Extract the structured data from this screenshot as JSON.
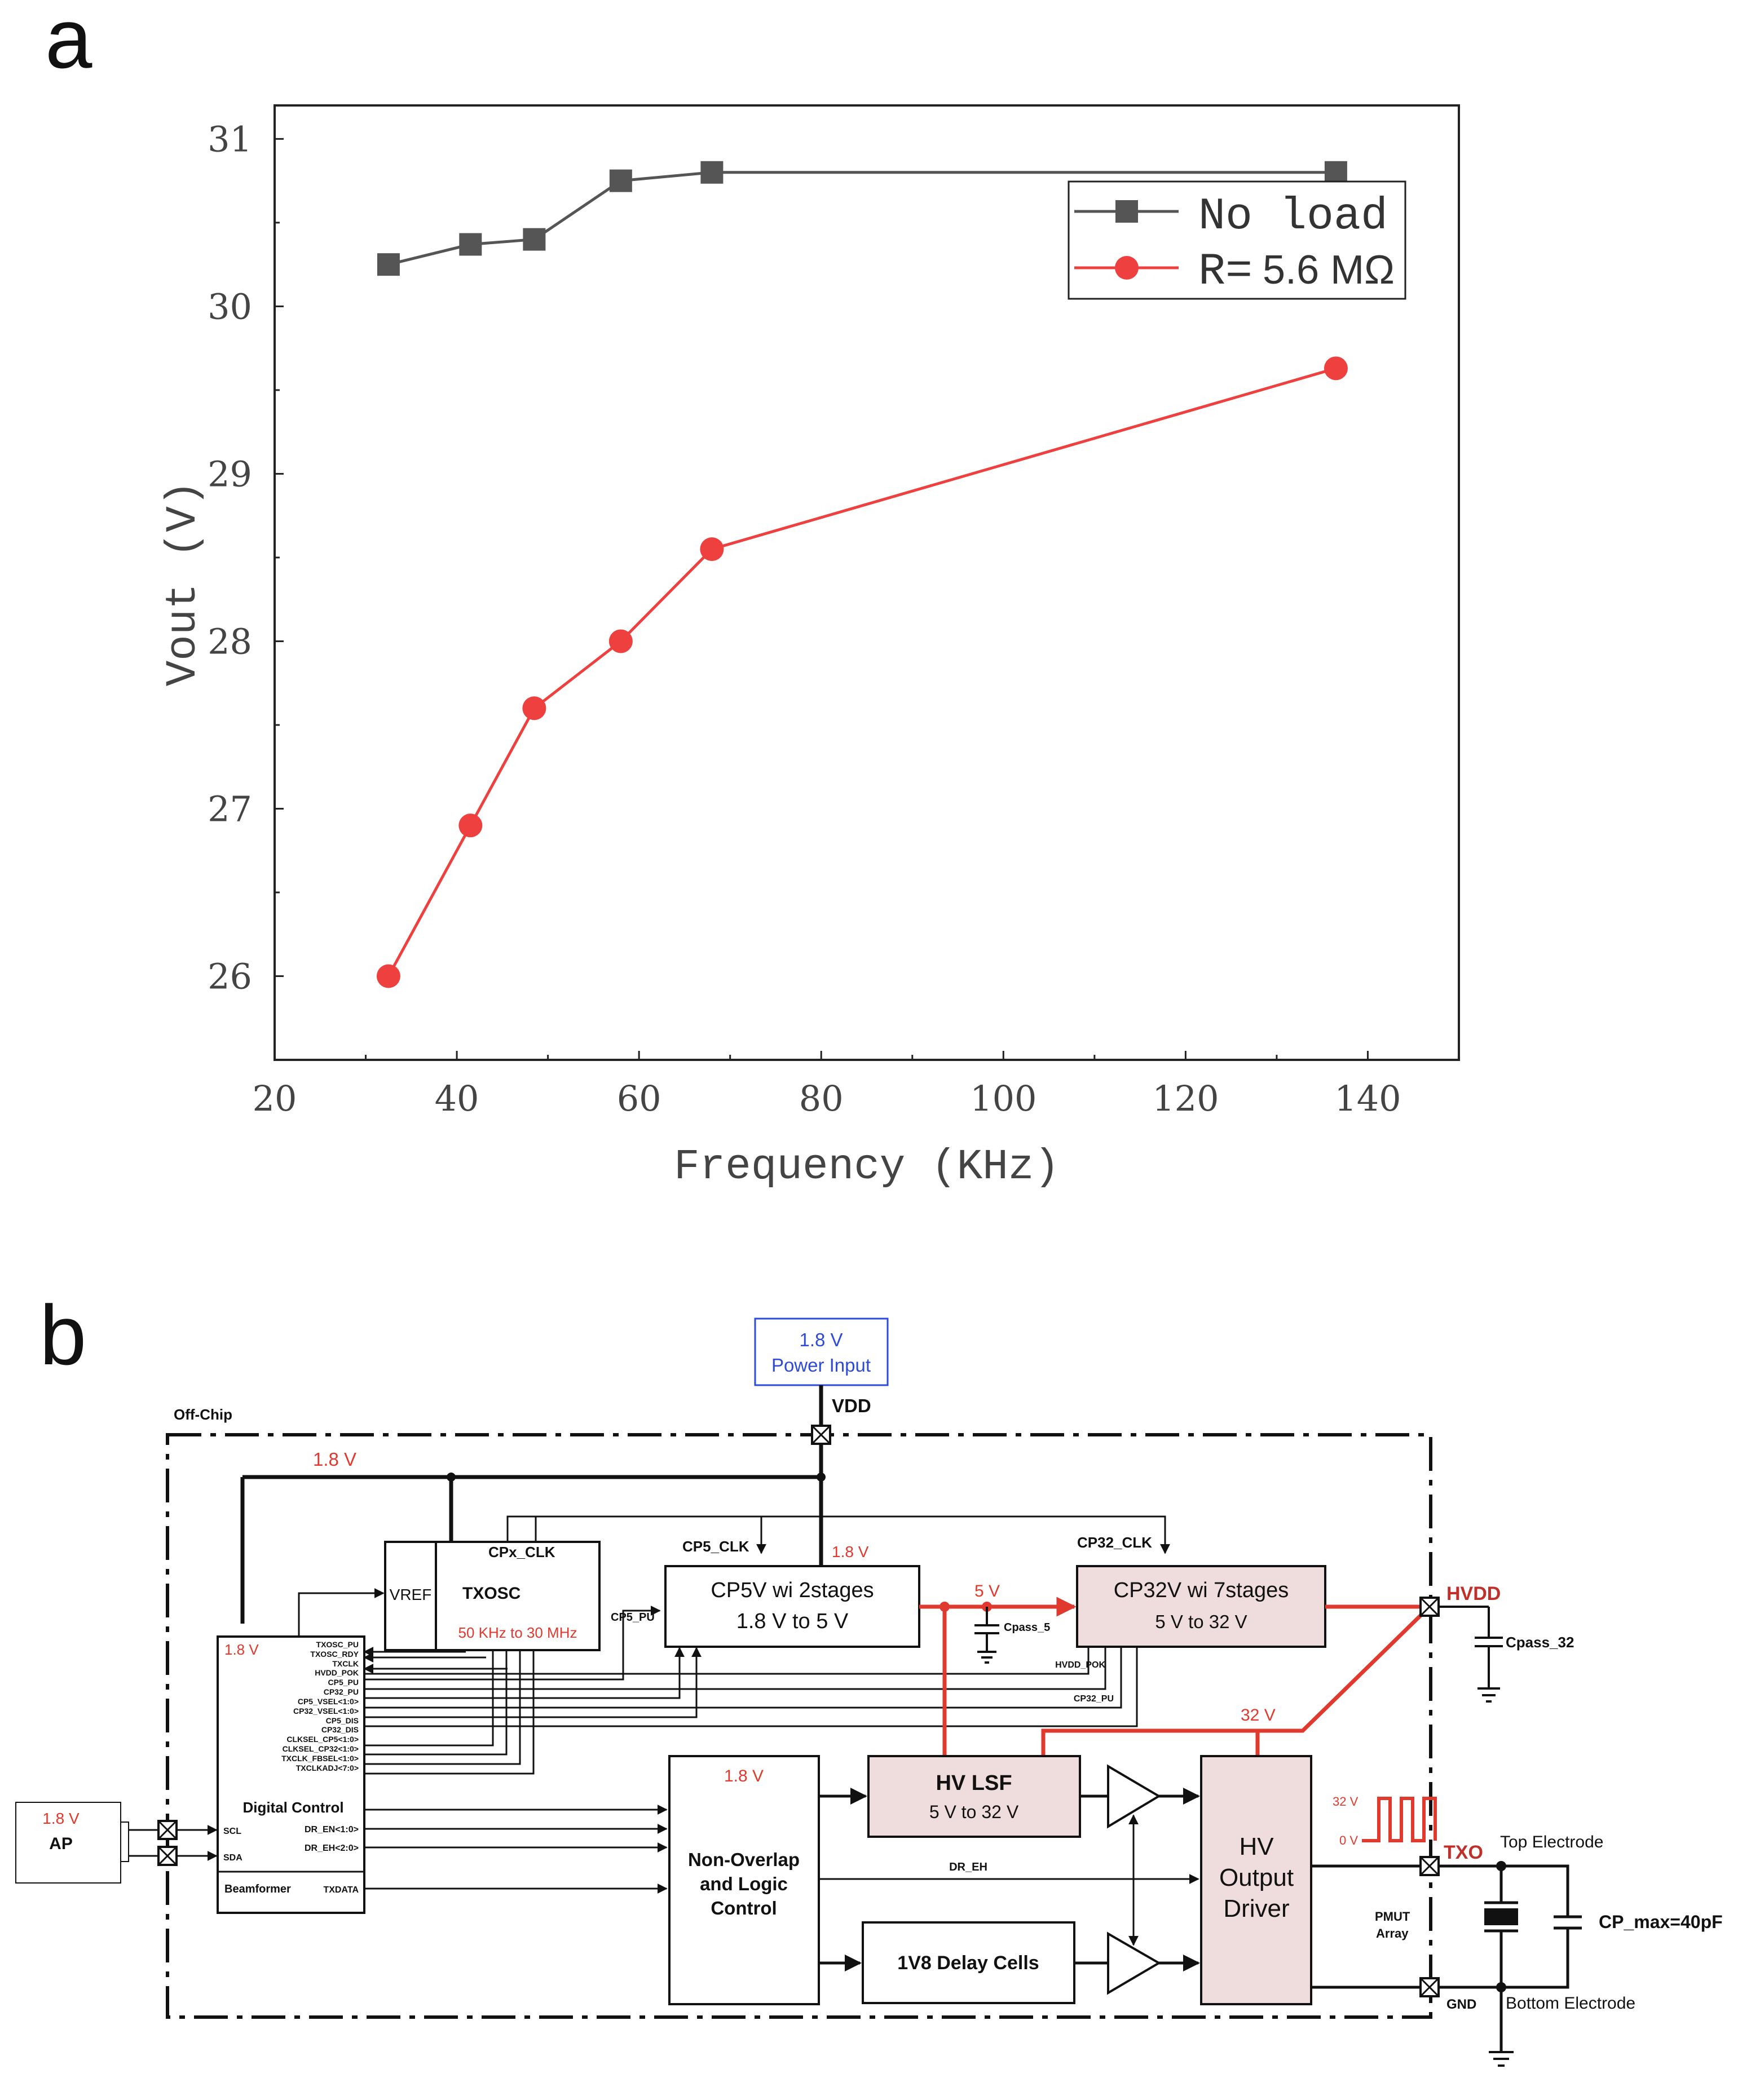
{
  "panel_a": {
    "label": "a"
  },
  "panel_b": {
    "label": "b"
  },
  "chart_data": {
    "type": "line",
    "title": "",
    "xlabel": "Frequency (KHz)",
    "ylabel": "Vout (V)",
    "xlim": [
      20,
      150
    ],
    "ylim": [
      25.5,
      31.2
    ],
    "xticks": [
      20,
      40,
      60,
      80,
      100,
      120,
      140
    ],
    "yticks": [
      26,
      27,
      28,
      29,
      30,
      31
    ],
    "grid": false,
    "legend_position": "top-right",
    "colors": {
      "no_load": "#555555",
      "loaded": "#ef4040"
    },
    "series": [
      {
        "name": "No load",
        "marker": "square",
        "x": [
          32.5,
          41.5,
          48.5,
          58,
          68,
          136.5
        ],
        "y": [
          30.25,
          30.37,
          30.4,
          30.75,
          30.8,
          30.8
        ]
      },
      {
        "name": "R= 5.6 MΩ",
        "legend_prefix": "R=",
        "legend_value": "5.6 MΩ",
        "marker": "circle",
        "x": [
          32.5,
          41.5,
          48.5,
          58,
          68,
          136.5
        ],
        "y": [
          26.0,
          26.9,
          27.6,
          28.0,
          28.55,
          29.63
        ]
      }
    ]
  },
  "diagram": {
    "power_input": {
      "voltage": "1.8 V",
      "label": "Power Input"
    },
    "vdd": "VDD",
    "off_chip": "Off-Chip",
    "rail_1v8": "1.8 V",
    "ap": {
      "voltage": "1.8 V",
      "label": "AP"
    },
    "digital_control": {
      "voltage": "1.8 V",
      "title": "Digital Control",
      "beamformer": "Beamformer",
      "outputs": [
        "TXOSC_PU",
        "TXOSC_RDY",
        "TXCLK",
        "HVDD_POK",
        "CP5_PU",
        "CP32_PU",
        "CP5_VSEL<1:0>",
        "CP32_VSEL<1:0>",
        "CP5_DIS",
        "CP32_DIS",
        "CLKSEL_CP5<1:0>",
        "CLKSEL_CP32<1:0>",
        "TXCLK_FBSEL<1:0>",
        "TXCLKADJ<7:0>"
      ],
      "scl": "SCL",
      "sda": "SDA",
      "dr_en": "DR_EN<1:0>",
      "dr_eh": "DR_EH<2:0>",
      "txdata": "TXDATA"
    },
    "vref": "VREF",
    "txosc": {
      "clk": "CPx_CLK",
      "title": "TXOSC",
      "range": "50 KHz to 30 MHz"
    },
    "cp5_pu": "CP5_PU",
    "cp5_clk": "CP5_CLK",
    "cp5_voltage": "1.8 V",
    "cp5": {
      "line1": "CP5V wi 2stages",
      "line2": "1.8 V to 5 V"
    },
    "v5": "5 V",
    "cpass5": "Cpass_5",
    "cp32_clk": "CP32_CLK",
    "cp32": {
      "line1": "CP32V wi 7stages",
      "line2": "5 V to 32 V"
    },
    "hvdd_pok": "HVDD_POK",
    "cp32_pu": "CP32_PU",
    "hvdd": "HVDD",
    "cpass32": "Cpass_32",
    "v32": "32 V",
    "nonoverlap": {
      "voltage": "1.8 V",
      "lines": [
        "Non-Overlap",
        "and Logic",
        "Control"
      ]
    },
    "dr_eh": "DR_EH",
    "hvlsf": {
      "title": "HV LSF",
      "sub": "5 V to 32 V"
    },
    "delay": "1V8 Delay Cells",
    "hvdriver": [
      "HV",
      "Output",
      "Driver"
    ],
    "wave": {
      "high": "32 V",
      "low": "0 V"
    },
    "txo": "TXO",
    "top_electrode": "Top Electrode",
    "pmut": [
      "PMUT",
      "Array"
    ],
    "cp": "CP_max=40pF",
    "gnd": "GND",
    "bottom_electrode": "Bottom Electrode"
  }
}
